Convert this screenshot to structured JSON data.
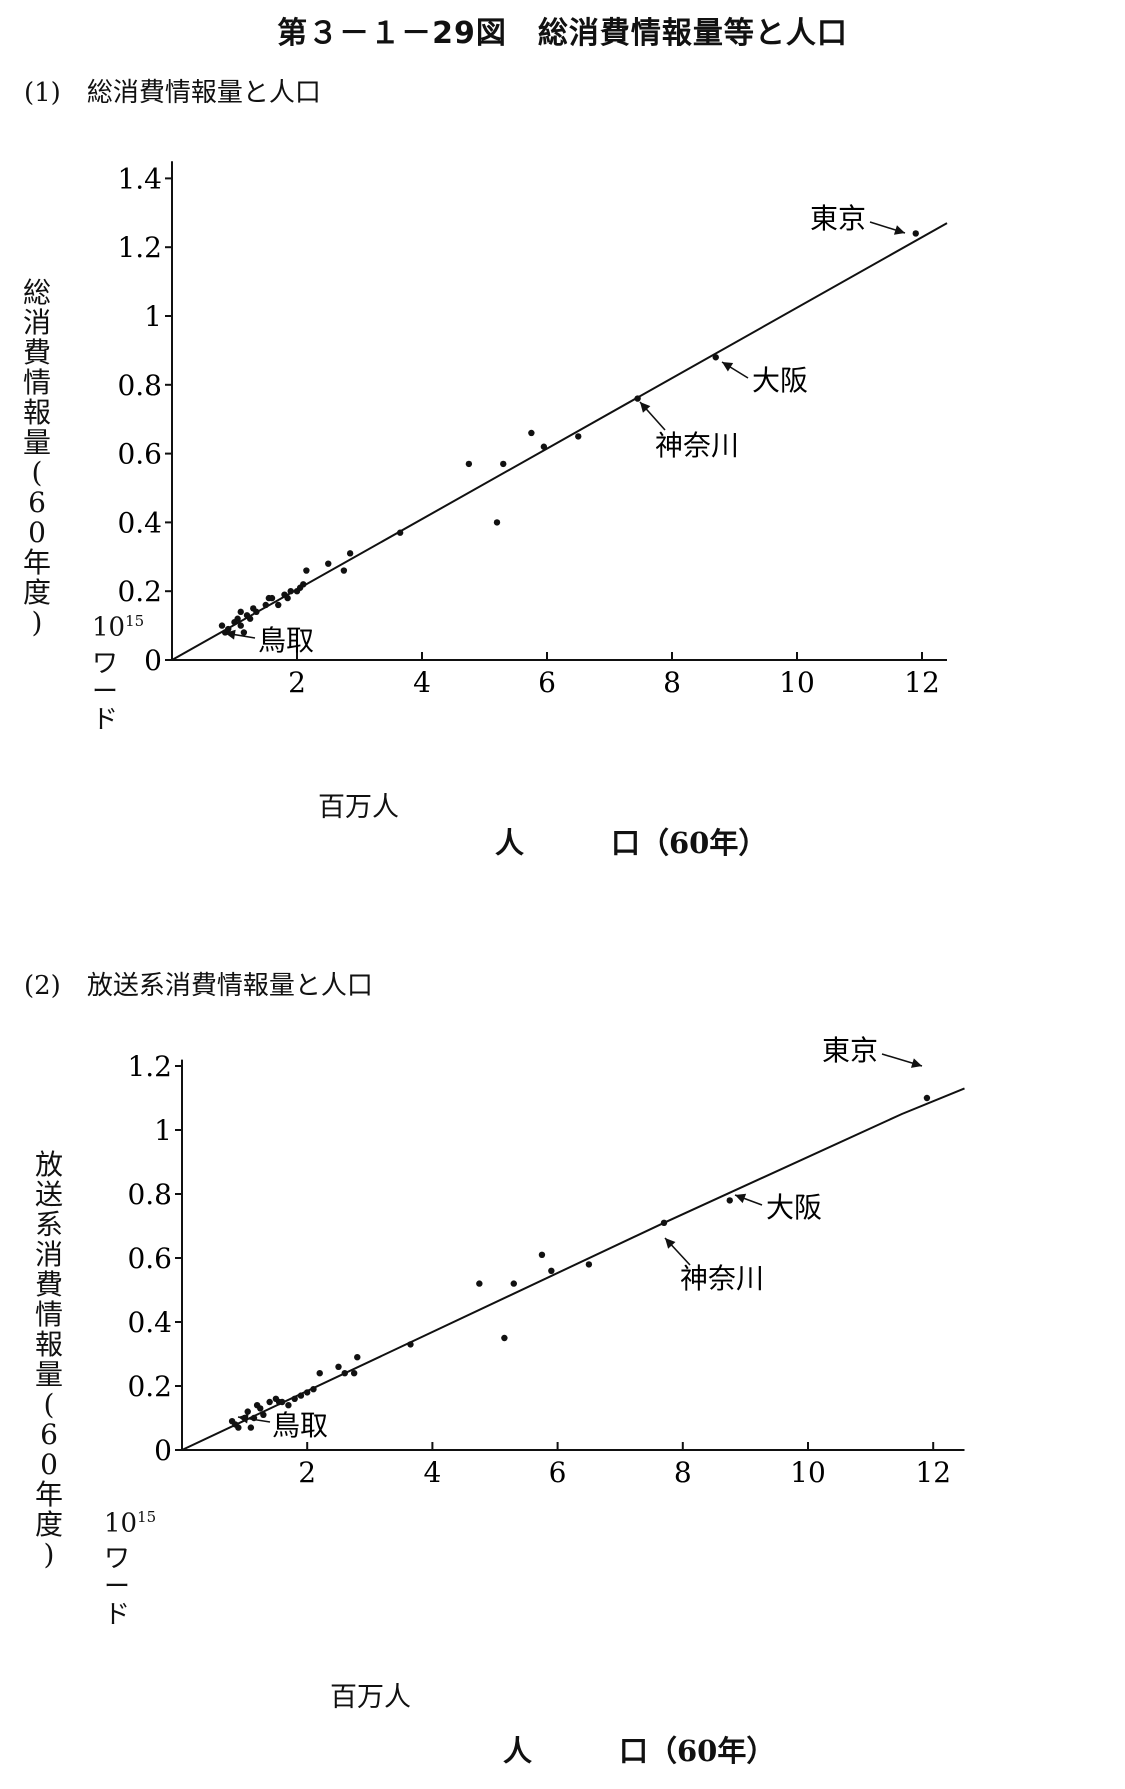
{
  "figure_title": "第３－１－29図　総消費情報量等と人口",
  "chart_data": [
    {
      "type": "scatter",
      "subtitle": "(1)　総消費情報量と人口",
      "ylabel": "総消費情報量(60年度)",
      "yunit_base": "10",
      "yunit_exp": "15",
      "yunit_word": "ワード",
      "xunit": "百万人",
      "xlabel": "人　　　口（60年）",
      "xlim": [
        0,
        12.4
      ],
      "ylim": [
        0,
        1.45
      ],
      "xticks": [
        2,
        4,
        6,
        8,
        10,
        12
      ],
      "xtick_labels": [
        "2",
        "4",
        "6",
        "8",
        "10",
        "12"
      ],
      "yticks": [
        0,
        0.2,
        0.4,
        0.6,
        0.8,
        1,
        1.2,
        1.4
      ],
      "ytick_labels": [
        "0",
        "0.2",
        "0.4",
        "0.6",
        "0.8",
        "1",
        "1.2",
        "1.4"
      ],
      "regression_line": [
        [
          0,
          0
        ],
        [
          12.4,
          1.27
        ]
      ],
      "points": [
        [
          0.8,
          0.1
        ],
        [
          0.85,
          0.08
        ],
        [
          0.9,
          0.09
        ],
        [
          1.0,
          0.11
        ],
        [
          1.05,
          0.12
        ],
        [
          1.1,
          0.1
        ],
        [
          1.1,
          0.14
        ],
        [
          1.15,
          0.08
        ],
        [
          1.2,
          0.13
        ],
        [
          1.25,
          0.12
        ],
        [
          1.3,
          0.15
        ],
        [
          1.35,
          0.14
        ],
        [
          1.5,
          0.16
        ],
        [
          1.55,
          0.18
        ],
        [
          1.6,
          0.18
        ],
        [
          1.7,
          0.16
        ],
        [
          1.8,
          0.19
        ],
        [
          1.85,
          0.18
        ],
        [
          1.9,
          0.2
        ],
        [
          2.0,
          0.2
        ],
        [
          2.05,
          0.21
        ],
        [
          2.1,
          0.22
        ],
        [
          2.15,
          0.26
        ],
        [
          2.5,
          0.28
        ],
        [
          2.75,
          0.26
        ],
        [
          2.85,
          0.31
        ],
        [
          3.65,
          0.37
        ],
        [
          4.75,
          0.57
        ],
        [
          5.2,
          0.4
        ],
        [
          5.3,
          0.57
        ],
        [
          5.75,
          0.66
        ],
        [
          5.95,
          0.62
        ],
        [
          6.5,
          0.65
        ],
        [
          7.45,
          0.76
        ],
        [
          8.7,
          0.88
        ],
        [
          11.9,
          1.24
        ]
      ],
      "annotations": [
        {
          "label": "東京",
          "x": 11.9,
          "y": 1.24
        },
        {
          "label": "大阪",
          "x": 8.7,
          "y": 0.88
        },
        {
          "label": "神奈川",
          "x": 7.45,
          "y": 0.76
        },
        {
          "label": "鳥取",
          "x": 0.85,
          "y": 0.08
        }
      ]
    },
    {
      "type": "scatter",
      "subtitle": "(2)　放送系消費情報量と人口",
      "ylabel": "放送系消費情報量(60年度)",
      "yunit_base": "10",
      "yunit_exp": "15",
      "yunit_word": "ワード",
      "xunit": "百万人",
      "xlabel": "人　　　口（60年）",
      "xlim": [
        0,
        12.5
      ],
      "ylim": [
        0,
        1.22
      ],
      "xticks": [
        2,
        4,
        6,
        8,
        10,
        12
      ],
      "xtick_labels": [
        "2",
        "4",
        "6",
        "8",
        "10",
        "12"
      ],
      "yticks": [
        0,
        0.2,
        0.4,
        0.6,
        0.8,
        1,
        1.2
      ],
      "ytick_labels": [
        "0",
        "0.2",
        "0.4",
        "0.6",
        "0.8",
        "1",
        "1.2"
      ],
      "regression_line": [
        [
          0,
          0
        ],
        [
          7.7,
          0.71
        ],
        [
          11.5,
          1.05
        ],
        [
          12.5,
          1.13
        ]
      ],
      "points": [
        [
          0.8,
          0.09
        ],
        [
          0.85,
          0.08
        ],
        [
          0.9,
          0.07
        ],
        [
          1.0,
          0.1
        ],
        [
          1.05,
          0.12
        ],
        [
          1.1,
          0.07
        ],
        [
          1.15,
          0.1
        ],
        [
          1.2,
          0.14
        ],
        [
          1.25,
          0.13
        ],
        [
          1.3,
          0.11
        ],
        [
          1.4,
          0.15
        ],
        [
          1.5,
          0.16
        ],
        [
          1.55,
          0.15
        ],
        [
          1.6,
          0.15
        ],
        [
          1.7,
          0.14
        ],
        [
          1.8,
          0.16
        ],
        [
          1.9,
          0.17
        ],
        [
          2.0,
          0.18
        ],
        [
          2.1,
          0.19
        ],
        [
          2.2,
          0.24
        ],
        [
          2.5,
          0.26
        ],
        [
          2.6,
          0.24
        ],
        [
          2.75,
          0.24
        ],
        [
          2.8,
          0.29
        ],
        [
          3.65,
          0.33
        ],
        [
          4.75,
          0.52
        ],
        [
          5.15,
          0.35
        ],
        [
          5.3,
          0.52
        ],
        [
          5.75,
          0.61
        ],
        [
          5.9,
          0.56
        ],
        [
          6.5,
          0.58
        ],
        [
          7.7,
          0.71
        ],
        [
          8.75,
          0.78
        ],
        [
          11.9,
          1.1
        ]
      ],
      "annotations": [
        {
          "label": "東京",
          "x": 11.9,
          "y": 1.1
        },
        {
          "label": "大阪",
          "x": 8.75,
          "y": 0.78
        },
        {
          "label": "神奈川",
          "x": 7.7,
          "y": 0.71
        },
        {
          "label": "鳥取",
          "x": 0.85,
          "y": 0.08
        }
      ]
    }
  ]
}
